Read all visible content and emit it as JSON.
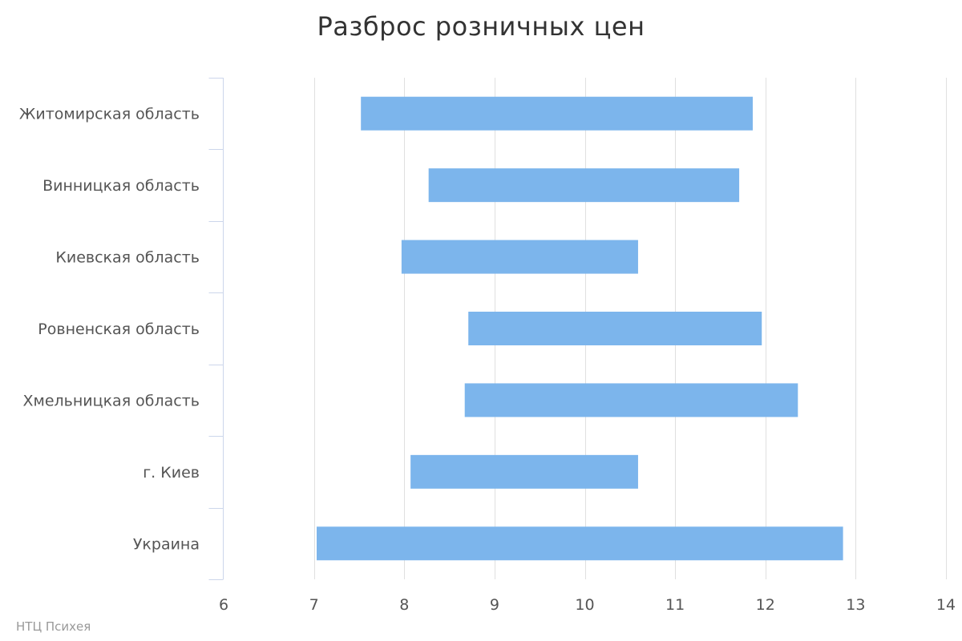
{
  "chart_data": {
    "type": "bar",
    "orientation": "horizontal",
    "title": "Разброс розничных цен",
    "categories": [
      "Житомирская область",
      "Винницкая область",
      "Киевская область",
      "Ровненская область",
      "Хмельницкая область",
      "г. Киев",
      "Украина"
    ],
    "low": [
      7.52,
      8.27,
      7.97,
      8.71,
      8.67,
      8.07,
      7.03
    ],
    "high": [
      11.86,
      11.71,
      10.59,
      11.96,
      12.36,
      10.59,
      12.86
    ],
    "xlim": [
      6,
      14
    ],
    "xticks": [
      6,
      7,
      8,
      9,
      10,
      11,
      12,
      13,
      14
    ],
    "grid": true,
    "legend": "none",
    "colors": {
      "bar": "#7cb5ec",
      "grid": "#e0e0e0",
      "axis": "#ccd6eb"
    }
  },
  "credits": "НТЦ Психея"
}
